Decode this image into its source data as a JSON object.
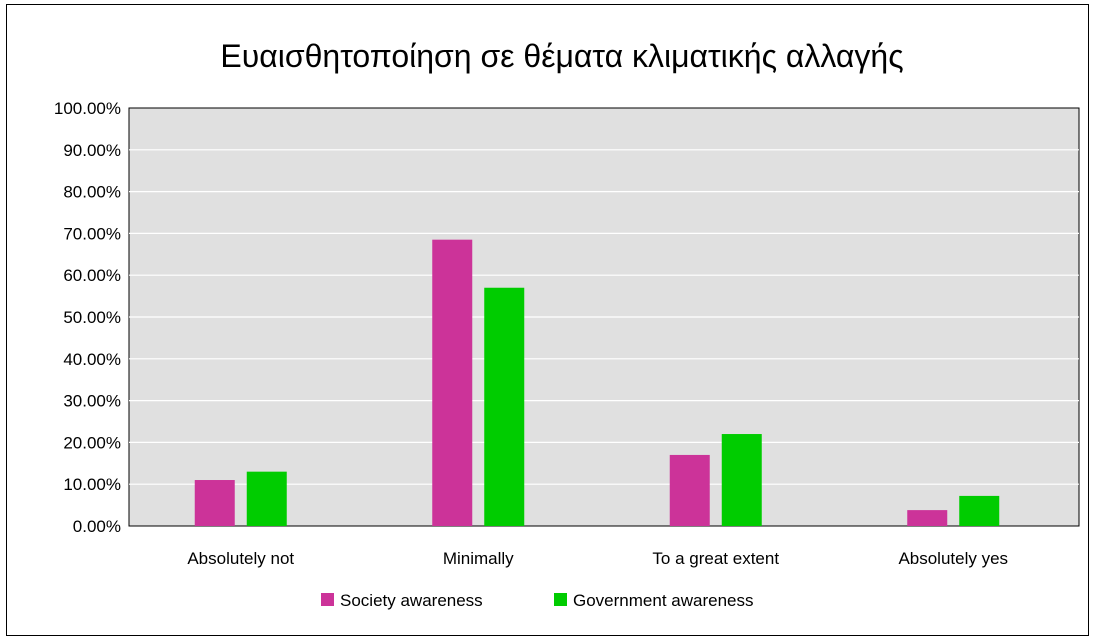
{
  "chart_data": {
    "type": "bar",
    "title": "Ευαισθητοποίηση σε θέματα κλιματικής αλλαγής",
    "categories": [
      "Absolutely not",
      "Minimally",
      "To a great extent",
      "Absolutely yes"
    ],
    "series": [
      {
        "name": "Society awareness",
        "color": "#cc3399",
        "values": [
          11.0,
          68.5,
          17.0,
          3.8
        ]
      },
      {
        "name": "Government awareness",
        "color": "#00cc00",
        "values": [
          13.0,
          57.0,
          22.0,
          7.2
        ]
      }
    ],
    "ylim": [
      0,
      100
    ],
    "yticks": [
      "0.00%",
      "10.00%",
      "20.00%",
      "30.00%",
      "40.00%",
      "50.00%",
      "60.00%",
      "70.00%",
      "80.00%",
      "90.00%",
      "100.00%"
    ],
    "grid": true,
    "plot_background": "#e0e0e0",
    "legend_position": "bottom"
  }
}
